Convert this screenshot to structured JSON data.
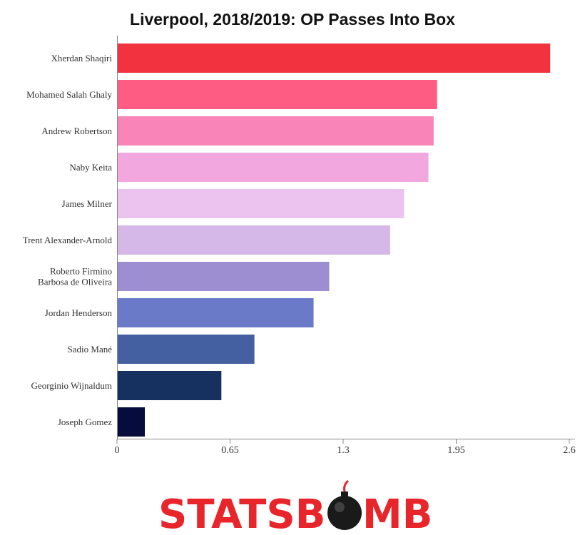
{
  "chart_data": {
    "type": "bar",
    "orientation": "horizontal",
    "title": "Liverpool, 2018/2019: OP Passes Into Box",
    "xlim": [
      0,
      2.6
    ],
    "xticks": [
      "0",
      "0.65",
      "1.3",
      "1.95",
      "2.6"
    ],
    "categories": [
      [
        "Xherdan Shaqiri"
      ],
      [
        "Mohamed Salah Ghaly"
      ],
      [
        "Andrew Robertson"
      ],
      [
        "Naby Keita"
      ],
      [
        "James Milner"
      ],
      [
        "Trent Alexander-Arnold"
      ],
      [
        "Roberto Firmino",
        "Barbosa de Oliveira"
      ],
      [
        "Jordan Henderson"
      ],
      [
        "Sadio Mané"
      ],
      [
        "Georginio Wijnaldum"
      ],
      [
        "Joseph Gomez"
      ]
    ],
    "values": [
      2.49,
      1.84,
      1.82,
      1.79,
      1.65,
      1.57,
      1.22,
      1.13,
      0.79,
      0.6,
      0.16
    ],
    "colors": [
      "#f2323e",
      "#fe5c82",
      "#f984b8",
      "#f2a8de",
      "#ebc3ee",
      "#d5b8e8",
      "#9c8ed1",
      "#6b7ac8",
      "#4460a0",
      "#16305f",
      "#060d3d"
    ],
    "grid": false,
    "legend": "none"
  },
  "branding": {
    "logo_text_left": "STATSB",
    "logo_text_right": "MB"
  }
}
